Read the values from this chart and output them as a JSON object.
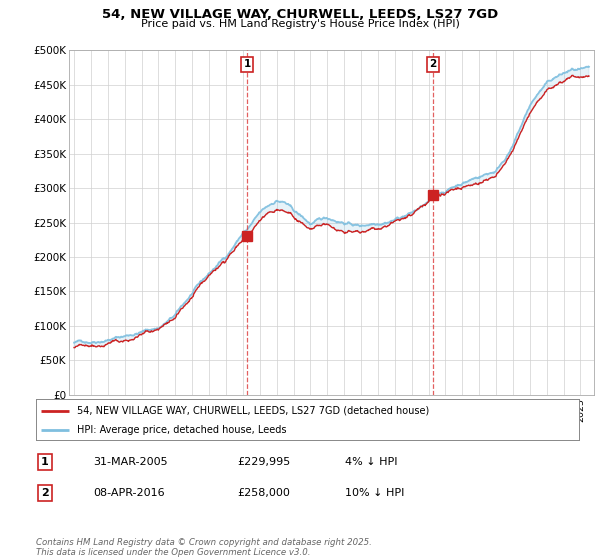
{
  "title1": "54, NEW VILLAGE WAY, CHURWELL, LEEDS, LS27 7GD",
  "title2": "Price paid vs. HM Land Registry's House Price Index (HPI)",
  "ylim": [
    0,
    500000
  ],
  "yticks": [
    0,
    50000,
    100000,
    150000,
    200000,
    250000,
    300000,
    350000,
    400000,
    450000,
    500000
  ],
  "ytick_labels": [
    "£0",
    "£50K",
    "£100K",
    "£150K",
    "£200K",
    "£250K",
    "£300K",
    "£350K",
    "£400K",
    "£450K",
    "£500K"
  ],
  "sale1_year": 2005.25,
  "sale1_price": 229995,
  "sale1_label": "1",
  "sale1_date": "31-MAR-2005",
  "sale1_price_str": "£229,995",
  "sale1_hpi": "4% ↓ HPI",
  "sale2_year": 2016.27,
  "sale2_price": 258000,
  "sale2_label": "2",
  "sale2_date": "08-APR-2016",
  "sale2_price_str": "£258,000",
  "sale2_hpi": "10% ↓ HPI",
  "hpi_color": "#7fbfdf",
  "price_color": "#cc2222",
  "vline_color": "#dd4444",
  "legend1": "54, NEW VILLAGE WAY, CHURWELL, LEEDS, LS27 7GD (detached house)",
  "legend2": "HPI: Average price, detached house, Leeds",
  "footer": "Contains HM Land Registry data © Crown copyright and database right 2025.\nThis data is licensed under the Open Government Licence v3.0.",
  "bg_color": "#ffffff",
  "grid_color": "#d0d0d0"
}
